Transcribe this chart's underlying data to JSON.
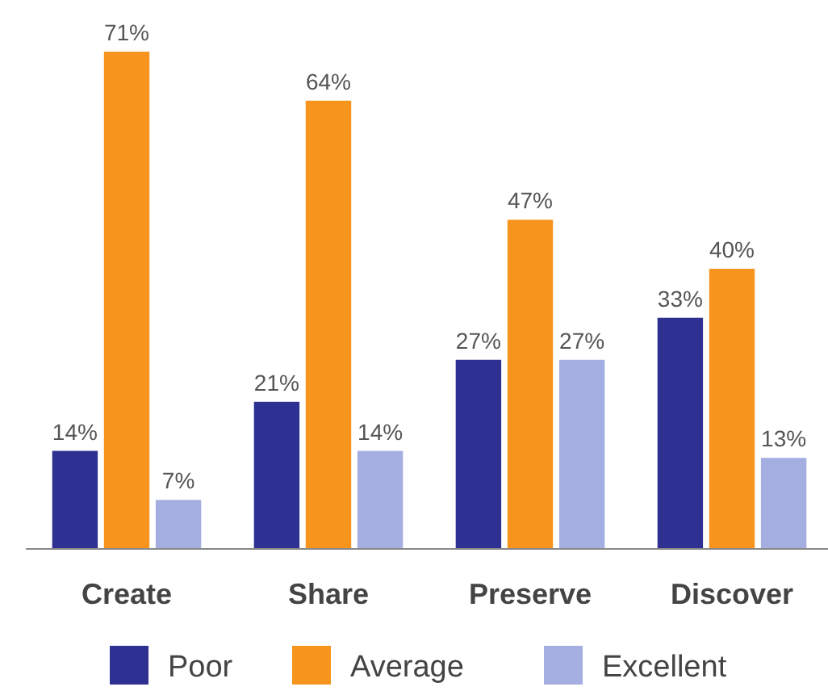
{
  "chart_data": {
    "type": "bar",
    "categories": [
      "Create",
      "Share",
      "Preserve",
      "Discover"
    ],
    "series": [
      {
        "name": "Poor",
        "color": "#2e3192",
        "values": [
          14,
          21,
          27,
          33
        ],
        "value_labels": [
          "14%",
          "21%",
          "27%",
          "33%"
        ]
      },
      {
        "name": "Average",
        "color": "#f7941d",
        "values": [
          71,
          64,
          47,
          40
        ],
        "value_labels": [
          "71%",
          "64%",
          "47%",
          "40%"
        ]
      },
      {
        "name": "Excellent",
        "color": "#a5aee0",
        "values": [
          7,
          14,
          27,
          13
        ],
        "value_labels": [
          "7%",
          "14%",
          "27%",
          "13%"
        ]
      }
    ],
    "legend": "bottom"
  }
}
